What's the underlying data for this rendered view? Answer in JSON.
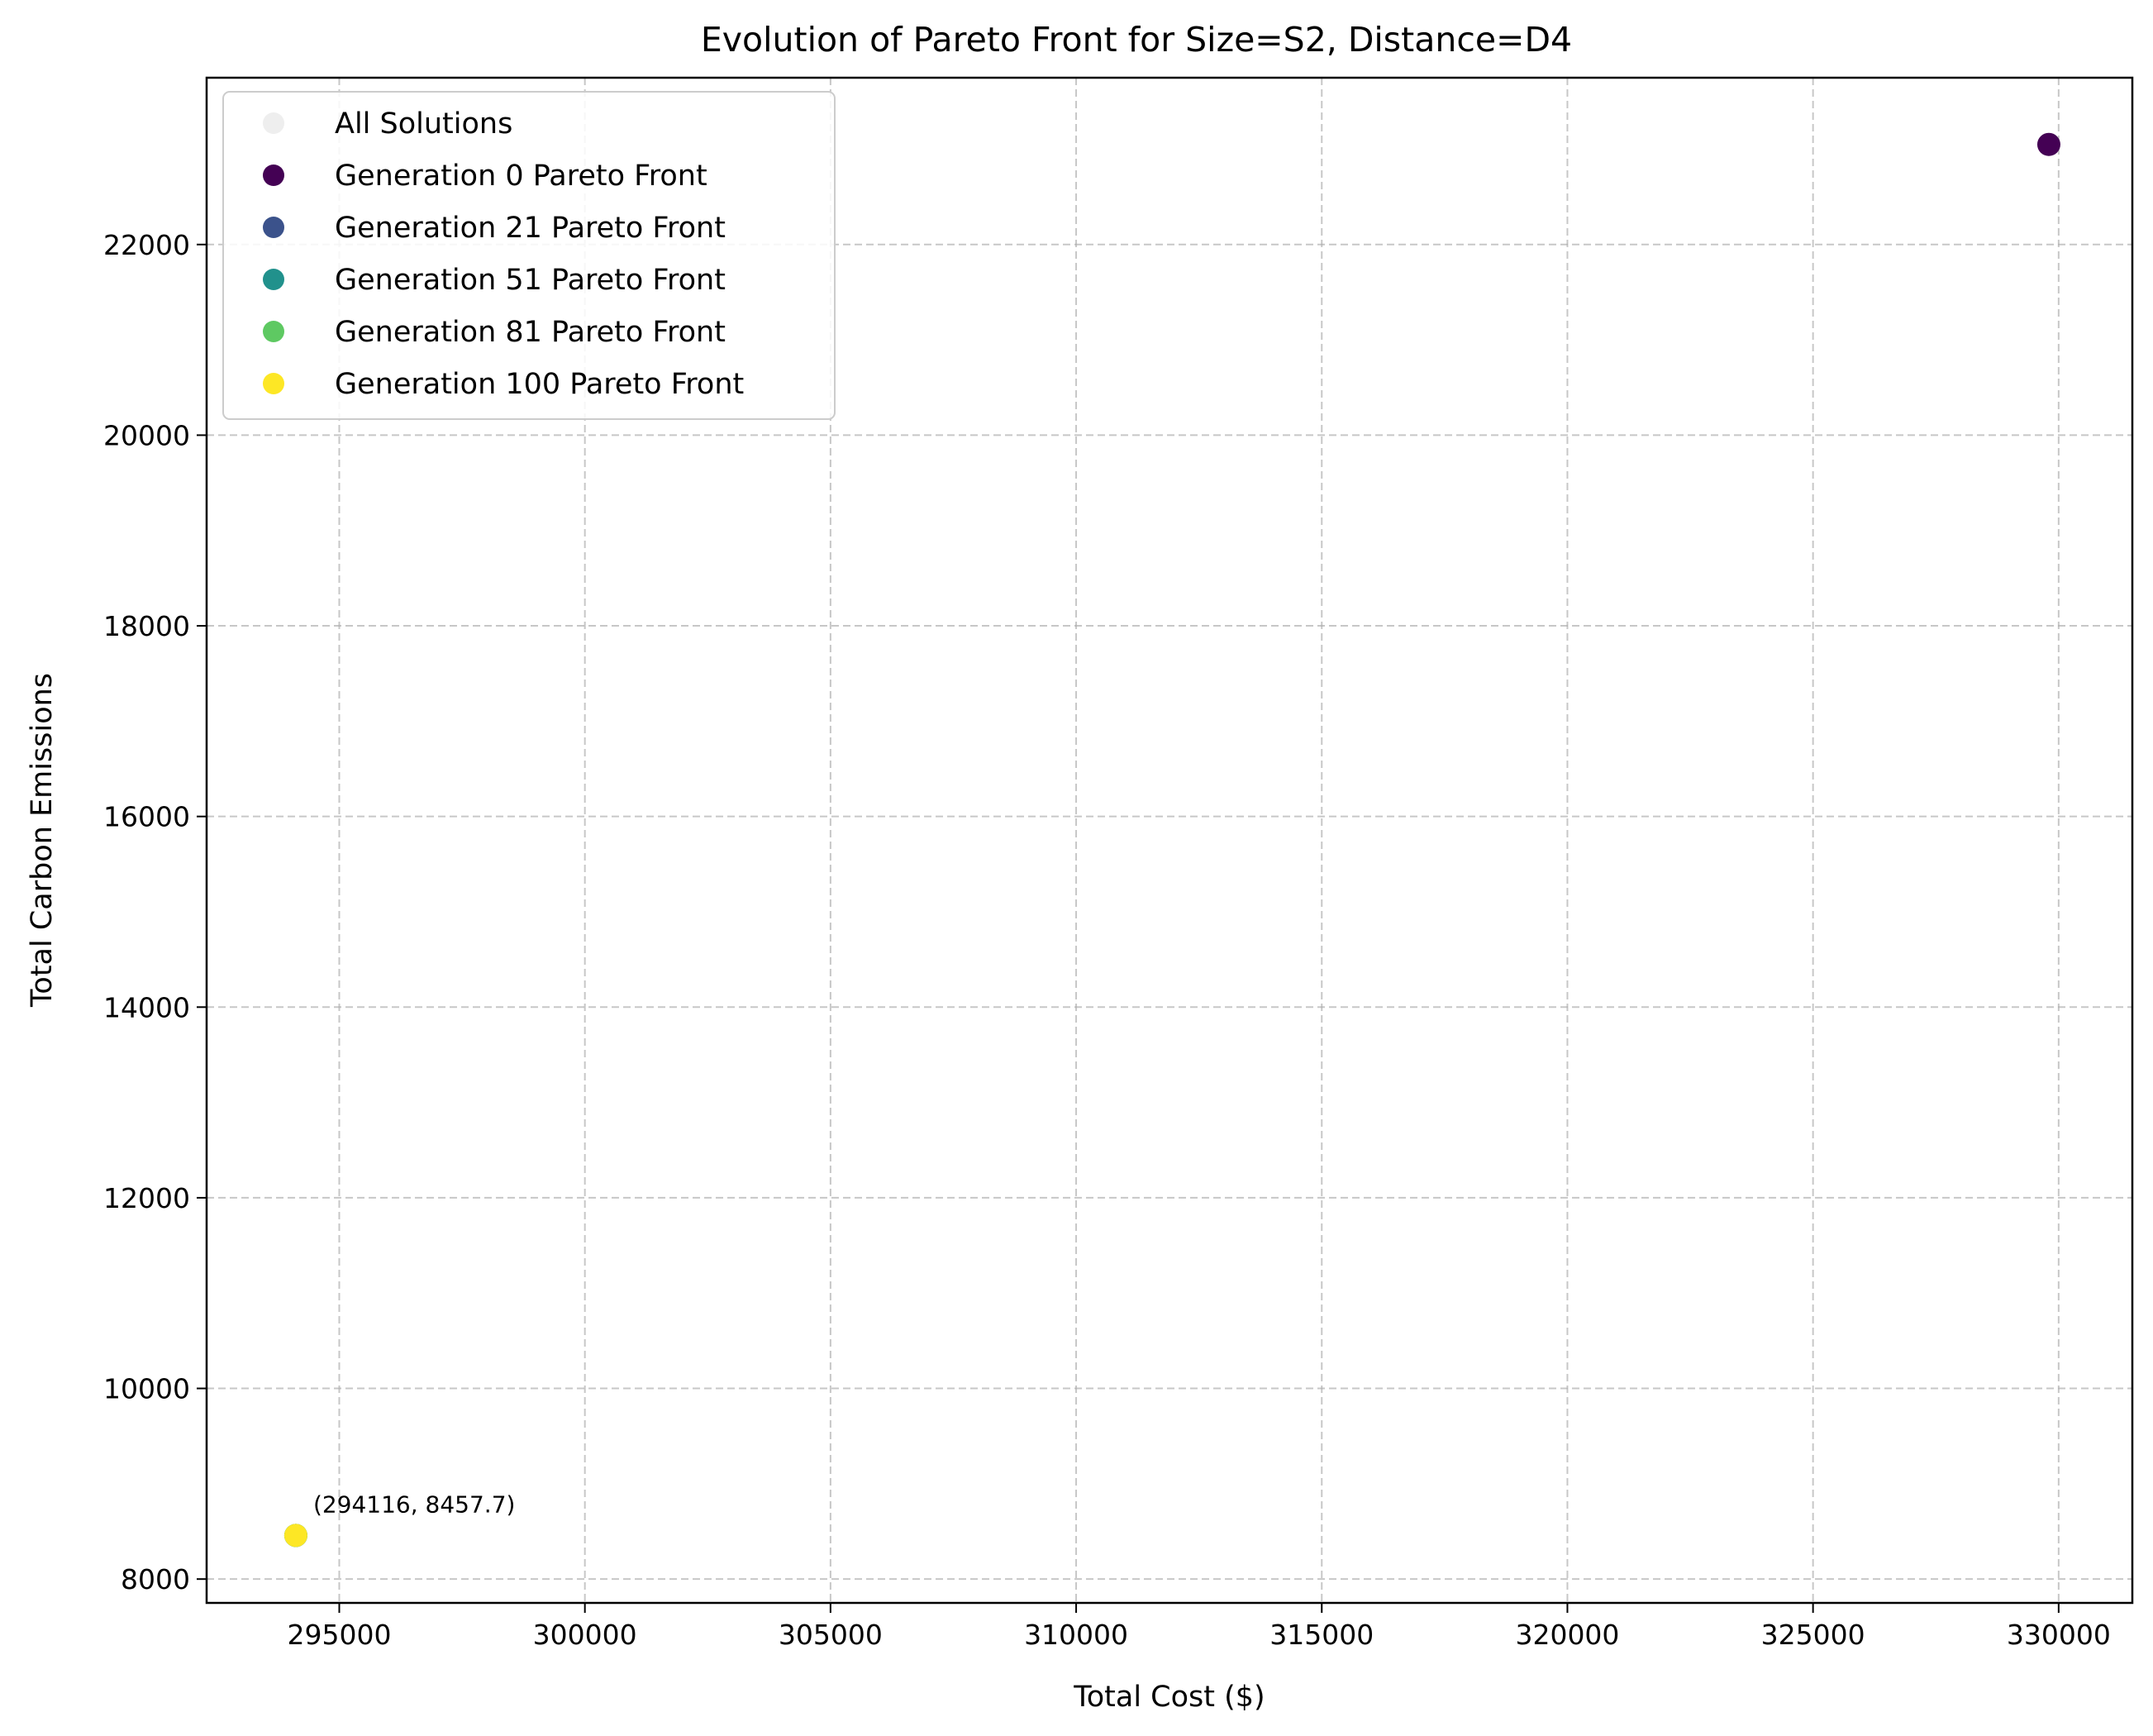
{
  "chart_data": {
    "type": "scatter",
    "title": "Evolution of Pareto Front for Size=S2, Distance=D4",
    "xlabel": "Total Cost ($)",
    "ylabel": "Total Carbon Emissions",
    "xlim": [
      292300,
      331500
    ],
    "ylim": [
      7750,
      23750
    ],
    "xticks": [
      295000,
      300000,
      305000,
      310000,
      315000,
      320000,
      325000,
      330000
    ],
    "yticks": [
      8000,
      10000,
      12000,
      14000,
      16000,
      18000,
      20000,
      22000
    ],
    "grid": true,
    "legend_position": "top-left",
    "series": [
      {
        "name": "All Solutions",
        "color": "#eeeeee",
        "points": [
          [
            294116,
            8457.7
          ],
          [
            329800,
            23050
          ]
        ]
      },
      {
        "name": "Generation 0 Pareto Front",
        "color": "#440154",
        "points": [
          [
            329800,
            23050
          ]
        ]
      },
      {
        "name": "Generation 21 Pareto Front",
        "color": "#3b528b",
        "points": [
          [
            294116,
            8457.7
          ]
        ]
      },
      {
        "name": "Generation 51 Pareto Front",
        "color": "#21918c",
        "points": [
          [
            294116,
            8457.7
          ]
        ]
      },
      {
        "name": "Generation 81 Pareto Front",
        "color": "#5ec962",
        "points": [
          [
            294116,
            8457.7
          ]
        ]
      },
      {
        "name": "Generation 100 Pareto Front",
        "color": "#fde725",
        "points": [
          [
            294116,
            8457.7
          ]
        ]
      }
    ],
    "annotations": [
      {
        "text": "(294116, 8457.7)",
        "x": 294116,
        "y": 8457.7
      }
    ]
  }
}
